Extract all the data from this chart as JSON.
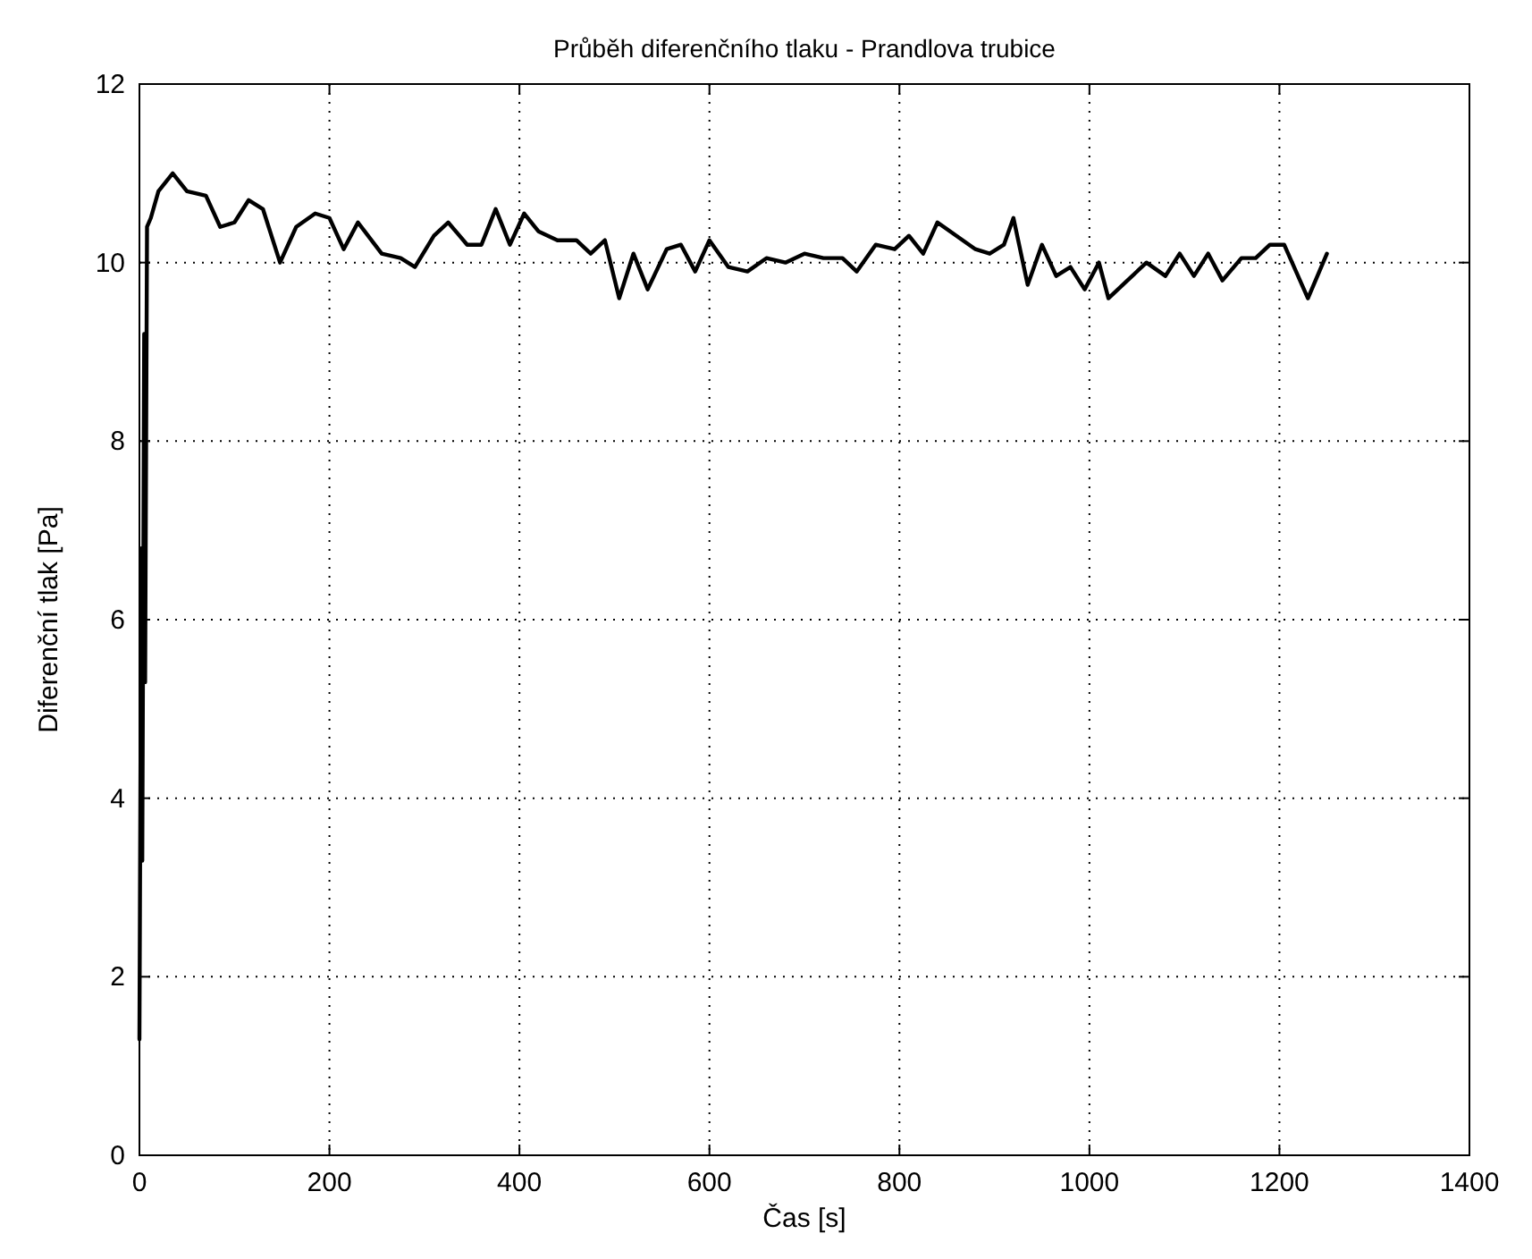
{
  "chart_data": {
    "type": "line",
    "title": "Průběh diferenčního tlaku - Prandlova trubice",
    "xlabel": "Čas [s]",
    "ylabel": "Diferenční tlak [Pa]",
    "xlim": [
      0,
      1400
    ],
    "xticks": [
      0,
      200,
      400,
      600,
      800,
      1000,
      1200,
      1400
    ],
    "ylim": [
      0,
      12
    ],
    "yticks": [
      0,
      2,
      4,
      6,
      8,
      10,
      12
    ],
    "grid": true,
    "marker": "none",
    "line_style": "solid",
    "series": [
      {
        "color": "#000000",
        "x": [
          0,
          2,
          3,
          5,
          6,
          8,
          12,
          20,
          35,
          50,
          70,
          85,
          100,
          115,
          130,
          148,
          165,
          185,
          200,
          215,
          230,
          255,
          275,
          290,
          310,
          325,
          345,
          360,
          375,
          390,
          405,
          420,
          440,
          460,
          475,
          490,
          505,
          520,
          535,
          555,
          570,
          585,
          600,
          620,
          640,
          660,
          680,
          700,
          720,
          740,
          755,
          775,
          795,
          810,
          825,
          840,
          860,
          880,
          895,
          910,
          920,
          935,
          950,
          965,
          980,
          995,
          1010,
          1020,
          1040,
          1060,
          1080,
          1095,
          1110,
          1125,
          1140,
          1160,
          1175,
          1190,
          1205,
          1230,
          1250
        ],
        "values": [
          1.3,
          6.8,
          3.3,
          9.2,
          5.3,
          10.4,
          10.5,
          10.8,
          11.0,
          10.8,
          10.75,
          10.4,
          10.45,
          10.7,
          10.6,
          10.0,
          10.4,
          10.55,
          10.5,
          10.15,
          10.45,
          10.1,
          10.05,
          9.95,
          10.3,
          10.45,
          10.2,
          10.2,
          10.6,
          10.2,
          10.55,
          10.35,
          10.25,
          10.25,
          10.1,
          10.25,
          9.6,
          10.1,
          9.7,
          10.15,
          10.2,
          9.9,
          10.25,
          9.95,
          9.9,
          10.05,
          10.0,
          10.1,
          10.05,
          10.05,
          9.9,
          10.2,
          10.15,
          10.3,
          10.1,
          10.45,
          10.3,
          10.15,
          10.1,
          10.2,
          10.5,
          9.75,
          10.2,
          9.85,
          9.95,
          9.7,
          10.0,
          9.6,
          9.8,
          10.0,
          9.85,
          10.1,
          9.85,
          10.1,
          9.8,
          10.05,
          10.05,
          10.2,
          10.2,
          9.6,
          10.1
        ]
      }
    ]
  }
}
